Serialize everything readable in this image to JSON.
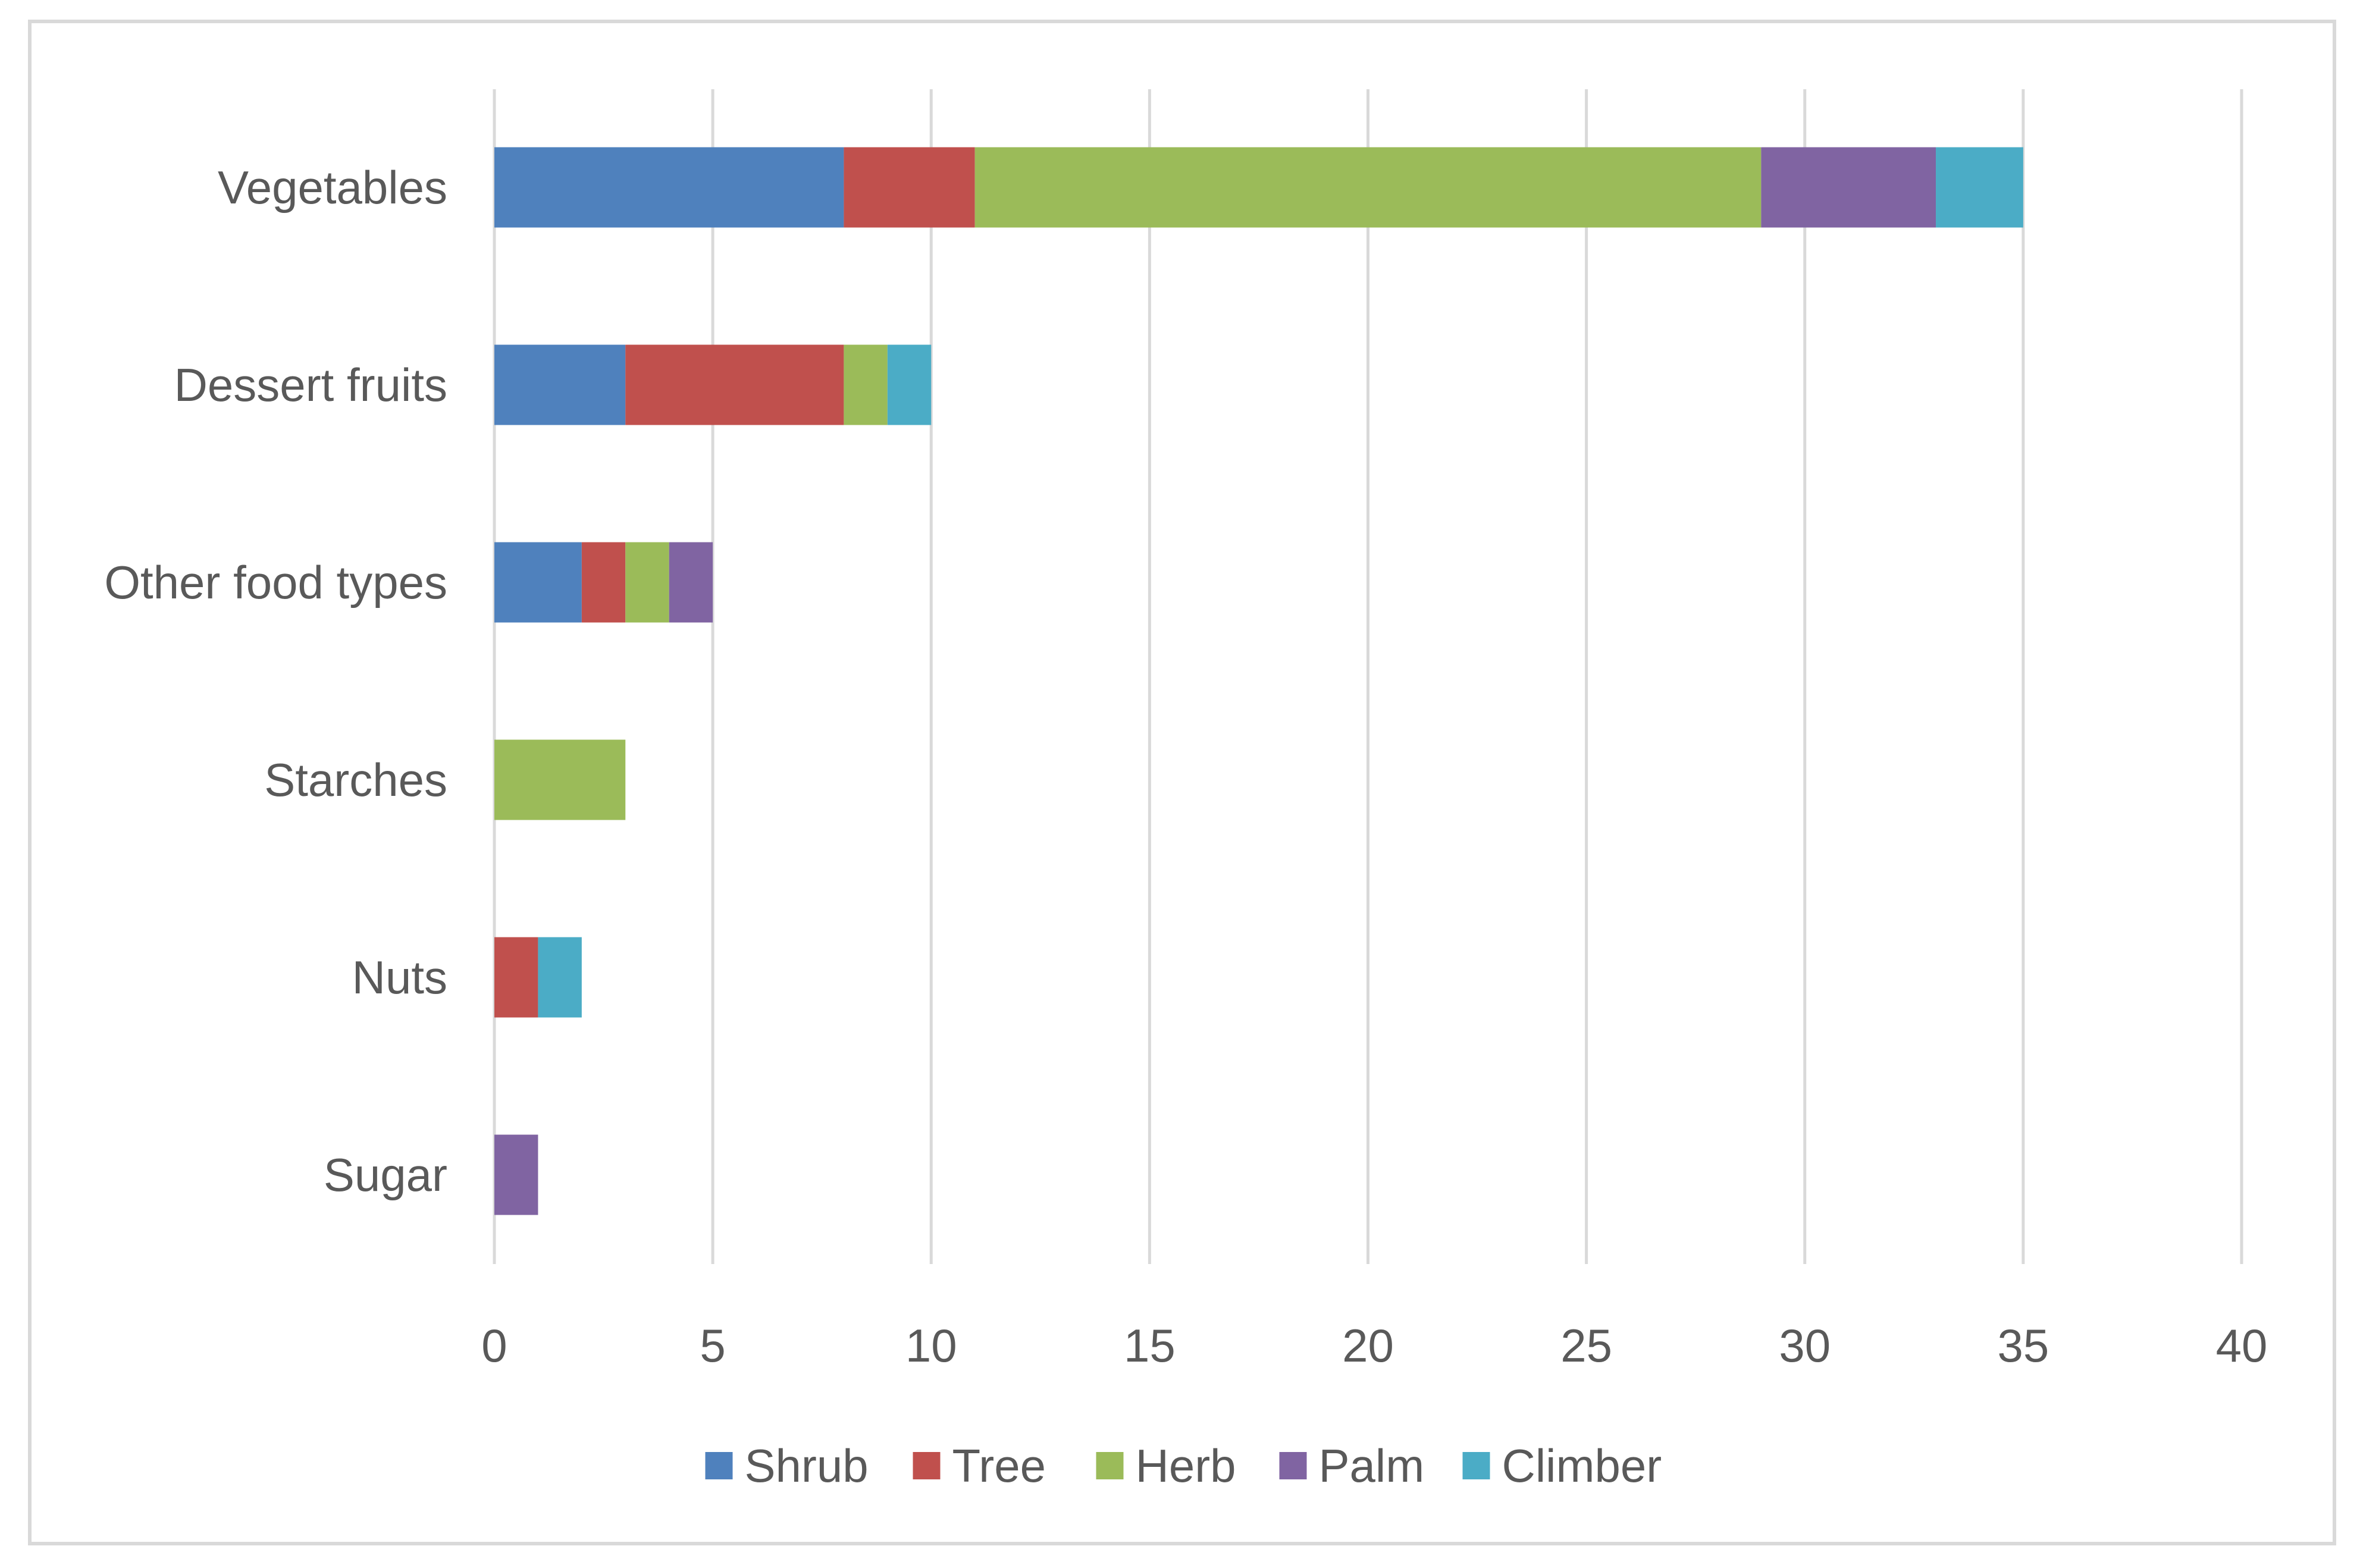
{
  "chart_data": {
    "type": "bar",
    "orientation": "horizontal",
    "stacked": true,
    "categories": [
      "Vegetables",
      "Dessert fruits",
      "Other food types",
      "Starches",
      "Nuts",
      "Sugar"
    ],
    "series": [
      {
        "name": "Shrub",
        "color": "#4f81bd",
        "values": [
          8,
          3,
          2,
          0,
          0,
          0
        ]
      },
      {
        "name": "Tree",
        "color": "#c0504d",
        "values": [
          3,
          5,
          1,
          0,
          1,
          0
        ]
      },
      {
        "name": "Herb",
        "color": "#9bbb59",
        "values": [
          18,
          1,
          1,
          3,
          0,
          0
        ]
      },
      {
        "name": "Palm",
        "color": "#8064a2",
        "values": [
          4,
          0,
          1,
          0,
          0,
          1
        ]
      },
      {
        "name": "Climber",
        "color": "#4bacc6",
        "values": [
          2,
          1,
          0,
          0,
          1,
          0
        ]
      }
    ],
    "xlim": [
      0,
      40
    ],
    "xticks": [
      0,
      5,
      10,
      15,
      20,
      25,
      30,
      35,
      40
    ],
    "title": "",
    "xlabel": "",
    "ylabel": "",
    "grid": "vertical",
    "gridline_color": "#d9d9d9",
    "legend_position": "bottom"
  }
}
